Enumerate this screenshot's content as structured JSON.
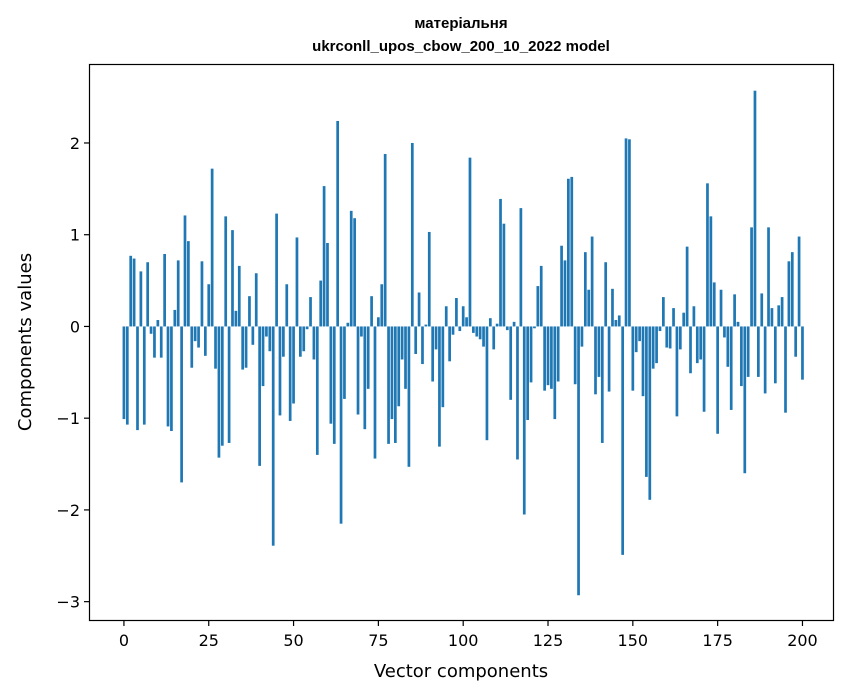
{
  "chart_data": {
    "type": "bar",
    "title": "матеріальня",
    "subtitle": "ukrconll_upos_cbow_200_10_2022 model",
    "xlabel": "Vector components",
    "ylabel": "Components values",
    "xlim": [
      -10,
      209
    ],
    "ylim": [
      -3.2,
      2.85
    ],
    "xticks": [
      0,
      25,
      50,
      75,
      100,
      125,
      150,
      175,
      200
    ],
    "yticks": [
      -3,
      -2,
      -1,
      0,
      1,
      2
    ],
    "ytick_labels": [
      "−3",
      "−2",
      "−1",
      "0",
      "1",
      "2"
    ],
    "bar_color": "#1f77b4",
    "grid": false,
    "values": [
      -1.01,
      -1.07,
      0.77,
      0.74,
      -1.13,
      0.6,
      -1.07,
      0.7,
      -0.08,
      -0.34,
      0.07,
      -0.34,
      0.79,
      -1.09,
      -1.14,
      0.18,
      0.72,
      -1.7,
      1.21,
      0.93,
      -0.45,
      -0.16,
      -0.23,
      0.71,
      -0.32,
      0.46,
      1.72,
      -0.46,
      -1.43,
      -1.3,
      1.2,
      -1.27,
      1.05,
      0.17,
      0.66,
      -0.47,
      -0.45,
      0.33,
      -0.2,
      0.58,
      -1.52,
      -0.65,
      -0.11,
      -0.27,
      -2.39,
      1.23,
      -0.97,
      -0.33,
      0.46,
      -1.03,
      -0.84,
      0.97,
      -0.33,
      -0.27,
      -0.03,
      0.32,
      -0.36,
      -1.4,
      0.5,
      1.53,
      0.91,
      -1.06,
      -1.28,
      2.24,
      -2.15,
      -0.79,
      0.04,
      1.26,
      1.18,
      -0.96,
      -0.11,
      -1.12,
      -0.68,
      0.33,
      -1.44,
      0.1,
      0.46,
      1.88,
      -1.28,
      -1.01,
      -1.27,
      -0.87,
      -0.36,
      -0.68,
      -1.53,
      2.0,
      -0.3,
      0.37,
      -0.41,
      0.02,
      1.03,
      -0.6,
      -0.25,
      -1.31,
      -0.88,
      0.22,
      -0.38,
      -0.09,
      0.31,
      -0.05,
      0.22,
      0.1,
      1.84,
      -0.07,
      -0.11,
      -0.14,
      -0.22,
      -1.24,
      0.09,
      -0.25,
      0.03,
      1.39,
      1.12,
      -0.04,
      -0.8,
      0.05,
      -1.45,
      1.29,
      -2.05,
      -1.02,
      -0.61,
      -0.02,
      0.44,
      0.66,
      -0.7,
      -0.64,
      -0.68,
      -1.01,
      -0.6,
      0.88,
      0.72,
      1.61,
      1.63,
      -0.63,
      -2.93,
      -0.22,
      0.81,
      0.4,
      0.98,
      -0.74,
      -0.55,
      -1.27,
      0.7,
      -0.71,
      0.41,
      0.07,
      0.12,
      -2.49,
      2.05,
      2.04,
      -0.7,
      -0.28,
      -0.16,
      -0.76,
      -1.64,
      -1.89,
      -0.46,
      -0.4,
      -0.05,
      0.32,
      -0.23,
      -0.24,
      0.2,
      -0.98,
      -0.25,
      0.15,
      0.87,
      -0.51,
      0.22,
      -0.4,
      -0.36,
      -0.93,
      1.56,
      1.2,
      0.48,
      -1.17,
      0.4,
      -0.12,
      -0.44,
      -0.91,
      0.35,
      0.05,
      -0.65,
      -1.6,
      -0.55,
      1.08,
      2.57,
      -0.55,
      0.36,
      -0.73,
      1.08,
      0.2,
      -0.62,
      0.23,
      0.32,
      -0.94,
      0.71,
      0.81,
      -0.33,
      0.98,
      -0.58
    ]
  }
}
